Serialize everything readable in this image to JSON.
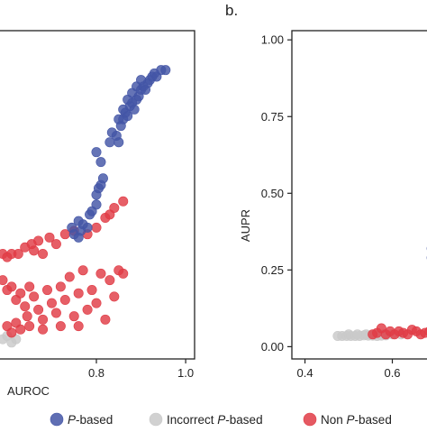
{
  "panel_b_label": "b.",
  "legend": {
    "entries": [
      {
        "prefix": "",
        "italic": "P",
        "suffix": "-based",
        "color": "#4355A6"
      },
      {
        "prefix": "Incorrect ",
        "italic": "P",
        "suffix": "-based",
        "color": "#C9C9C9"
      },
      {
        "prefix": "Non ",
        "italic": "P",
        "suffix": "-based",
        "color": "#E03C46"
      }
    ]
  },
  "chart_data": [
    {
      "panel": "a (partial)",
      "type": "scatter",
      "xlabel": "AUROC",
      "ylabel": "",
      "xlim": [
        0.58,
        1.02
      ],
      "ylim": [
        0.0,
        1.0
      ],
      "x_ticks": [
        "0.8",
        "1.0"
      ],
      "x_tick_values": [
        0.8,
        1.0
      ],
      "grid": false,
      "series": [
        {
          "name": "P-based",
          "color": "#4355A6",
          "points": [
            [
              0.76,
              0.42
            ],
            [
              0.745,
              0.4
            ],
            [
              0.75,
              0.38
            ],
            [
              0.76,
              0.37
            ],
            [
              0.765,
              0.39
            ],
            [
              0.77,
              0.41
            ],
            [
              0.78,
              0.4
            ],
            [
              0.785,
              0.44
            ],
            [
              0.79,
              0.45
            ],
            [
              0.8,
              0.47
            ],
            [
              0.8,
              0.5
            ],
            [
              0.805,
              0.52
            ],
            [
              0.81,
              0.53
            ],
            [
              0.815,
              0.55
            ],
            [
              0.81,
              0.6
            ],
            [
              0.8,
              0.63
            ],
            [
              0.83,
              0.66
            ],
            [
              0.835,
              0.69
            ],
            [
              0.845,
              0.68
            ],
            [
              0.85,
              0.66
            ],
            [
              0.855,
              0.71
            ],
            [
              0.86,
              0.73
            ],
            [
              0.865,
              0.75
            ],
            [
              0.87,
              0.74
            ],
            [
              0.875,
              0.77
            ],
            [
              0.88,
              0.78
            ],
            [
              0.885,
              0.76
            ],
            [
              0.89,
              0.79
            ],
            [
              0.895,
              0.8
            ],
            [
              0.9,
              0.82
            ],
            [
              0.905,
              0.83
            ],
            [
              0.91,
              0.82
            ],
            [
              0.915,
              0.84
            ],
            [
              0.92,
              0.85
            ],
            [
              0.925,
              0.86
            ],
            [
              0.93,
              0.87
            ],
            [
              0.935,
              0.86
            ],
            [
              0.945,
              0.88
            ],
            [
              0.955,
              0.88
            ],
            [
              0.85,
              0.73
            ],
            [
              0.86,
              0.76
            ],
            [
              0.87,
              0.79
            ],
            [
              0.88,
              0.81
            ],
            [
              0.89,
              0.83
            ],
            [
              0.9,
              0.85
            ]
          ]
        },
        {
          "name": "Non P-based",
          "color": "#E03C46",
          "points": [
            [
              0.59,
              0.32
            ],
            [
              0.6,
              0.31
            ],
            [
              0.61,
              0.32
            ],
            [
              0.625,
              0.32
            ],
            [
              0.64,
              0.34
            ],
            [
              0.655,
              0.35
            ],
            [
              0.66,
              0.33
            ],
            [
              0.67,
              0.36
            ],
            [
              0.68,
              0.32
            ],
            [
              0.695,
              0.37
            ],
            [
              0.71,
              0.35
            ],
            [
              0.73,
              0.38
            ],
            [
              0.75,
              0.39
            ],
            [
              0.78,
              0.38
            ],
            [
              0.8,
              0.4
            ],
            [
              0.82,
              0.43
            ],
            [
              0.83,
              0.44
            ],
            [
              0.84,
              0.46
            ],
            [
              0.86,
              0.48
            ],
            [
              0.59,
              0.24
            ],
            [
              0.6,
              0.21
            ],
            [
              0.61,
              0.22
            ],
            [
              0.62,
              0.18
            ],
            [
              0.63,
              0.2
            ],
            [
              0.64,
              0.16
            ],
            [
              0.645,
              0.13
            ],
            [
              0.65,
              0.22
            ],
            [
              0.66,
              0.19
            ],
            [
              0.67,
              0.15
            ],
            [
              0.68,
              0.12
            ],
            [
              0.69,
              0.21
            ],
            [
              0.7,
              0.17
            ],
            [
              0.71,
              0.14
            ],
            [
              0.72,
              0.22
            ],
            [
              0.73,
              0.18
            ],
            [
              0.74,
              0.25
            ],
            [
              0.75,
              0.13
            ],
            [
              0.76,
              0.2
            ],
            [
              0.77,
              0.27
            ],
            [
              0.78,
              0.15
            ],
            [
              0.79,
              0.21
            ],
            [
              0.8,
              0.17
            ],
            [
              0.81,
              0.26
            ],
            [
              0.82,
              0.12
            ],
            [
              0.83,
              0.24
            ],
            [
              0.84,
              0.19
            ],
            [
              0.85,
              0.27
            ],
            [
              0.86,
              0.26
            ],
            [
              0.6,
              0.1
            ],
            [
              0.61,
              0.08
            ],
            [
              0.62,
              0.11
            ],
            [
              0.63,
              0.09
            ],
            [
              0.65,
              0.1
            ],
            [
              0.68,
              0.09
            ],
            [
              0.72,
              0.1
            ],
            [
              0.76,
              0.1
            ]
          ]
        },
        {
          "name": "Incorrect P-based",
          "color": "#C9C9C9",
          "points": [
            [
              0.59,
              0.06
            ],
            [
              0.6,
              0.07
            ],
            [
              0.61,
              0.05
            ],
            [
              0.62,
              0.06
            ]
          ]
        }
      ]
    },
    {
      "panel": "b (partial)",
      "type": "scatter",
      "xlabel": "",
      "ylabel": "AUPR",
      "xlim": [
        0.37,
        0.7
      ],
      "ylim": [
        -0.04,
        1.03
      ],
      "x_ticks": [
        "0.4",
        "0.6"
      ],
      "x_tick_values": [
        0.4,
        0.6
      ],
      "y_ticks": [
        "0.00",
        "0.25",
        "0.50",
        "0.75",
        "1.00"
      ],
      "y_tick_values": [
        0.0,
        0.25,
        0.5,
        0.75,
        1.0
      ],
      "grid": false,
      "series": [
        {
          "name": "Incorrect P-based",
          "color": "#C9C9C9",
          "points": [
            [
              0.475,
              0.035
            ],
            [
              0.485,
              0.035
            ],
            [
              0.495,
              0.035
            ],
            [
              0.505,
              0.035
            ],
            [
              0.515,
              0.035
            ],
            [
              0.525,
              0.035
            ],
            [
              0.535,
              0.037
            ],
            [
              0.545,
              0.036
            ],
            [
              0.555,
              0.036
            ],
            [
              0.565,
              0.035
            ],
            [
              0.575,
              0.036
            ],
            [
              0.585,
              0.037
            ],
            [
              0.5,
              0.04
            ],
            [
              0.52,
              0.04
            ],
            [
              0.54,
              0.04
            ],
            [
              0.56,
              0.04
            ],
            [
              0.58,
              0.04
            ],
            [
              0.6,
              0.04
            ],
            [
              0.62,
              0.04
            ]
          ]
        },
        {
          "name": "Non P-based",
          "color": "#E03C46",
          "points": [
            [
              0.555,
              0.04
            ],
            [
              0.565,
              0.045
            ],
            [
              0.575,
              0.06
            ],
            [
              0.585,
              0.04
            ],
            [
              0.595,
              0.05
            ],
            [
              0.605,
              0.04
            ],
            [
              0.615,
              0.05
            ],
            [
              0.625,
              0.045
            ],
            [
              0.635,
              0.04
            ],
            [
              0.645,
              0.055
            ],
            [
              0.655,
              0.05
            ],
            [
              0.665,
              0.04
            ],
            [
              0.675,
              0.045
            ],
            [
              0.685,
              0.05
            ]
          ]
        },
        {
          "name": "P-based",
          "color": "#4355A6",
          "points": [
            [
              0.69,
              0.32
            ],
            [
              0.69,
              0.29
            ],
            [
              0.695,
              0.35
            ]
          ]
        }
      ]
    }
  ]
}
